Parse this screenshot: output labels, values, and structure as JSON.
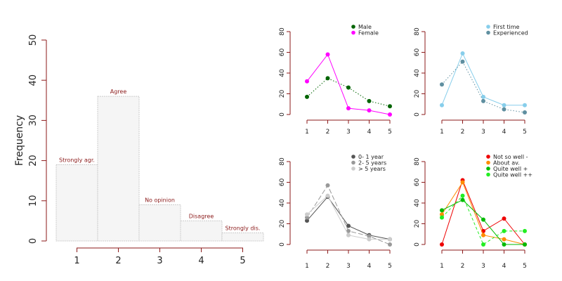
{
  "chart_data": [
    {
      "type": "bar",
      "ylabel": "Frequency",
      "categories": [
        "1",
        "2",
        "3",
        "4",
        "5"
      ],
      "values": [
        19,
        36,
        9,
        5,
        2
      ],
      "bar_labels": [
        "Strongly agr.",
        "Agree",
        "No opinion",
        "Disagree",
        "Strongly dis."
      ],
      "ylim": [
        0,
        50
      ],
      "yticks": [
        0,
        10,
        20,
        30,
        40,
        50
      ],
      "bar_fill": "#f5f5f5",
      "bar_stroke": "#cccccc",
      "label_color": "#8b1a1a"
    },
    {
      "type": "line",
      "x": [
        1,
        2,
        3,
        4,
        5
      ],
      "ylim": [
        0,
        80
      ],
      "yticks": [
        0,
        20,
        40,
        60,
        80
      ],
      "legend_position": "top-right",
      "series": [
        {
          "name": "Male",
          "values": [
            17,
            35,
            26,
            13,
            8
          ],
          "color": "#006400",
          "dash": "dotted"
        },
        {
          "name": "Female",
          "values": [
            32,
            58,
            6,
            4,
            0
          ],
          "color": "#ff00ff",
          "dash": "solid"
        }
      ]
    },
    {
      "type": "line",
      "x": [
        1,
        2,
        3,
        4,
        5
      ],
      "ylim": [
        0,
        80
      ],
      "yticks": [
        0,
        20,
        40,
        60,
        80
      ],
      "legend_position": "top-right",
      "series": [
        {
          "name": "First time",
          "values": [
            9,
            59,
            17,
            9,
            9
          ],
          "color": "#87ceeb",
          "dash": "solid"
        },
        {
          "name": "Experienced",
          "values": [
            29,
            51,
            13,
            5,
            2
          ],
          "color": "#5f8fa0",
          "dash": "dotted"
        }
      ]
    },
    {
      "type": "line",
      "x": [
        1,
        2,
        3,
        4,
        5
      ],
      "ylim": [
        0,
        80
      ],
      "yticks": [
        0,
        20,
        40,
        60,
        80
      ],
      "legend_position": "top-right",
      "series": [
        {
          "name": "0- 1 year",
          "values": [
            23,
            46,
            18,
            9,
            5
          ],
          "color": "#555555",
          "dash": "solid"
        },
        {
          "name": "2- 5 years",
          "values": [
            26,
            57,
            13,
            8,
            0
          ],
          "color": "#999999",
          "dash": "longdash"
        },
        {
          "name": "> 5 years",
          "values": [
            29,
            47,
            9,
            5,
            5
          ],
          "color": "#cccccc",
          "dash": "solid"
        }
      ]
    },
    {
      "type": "line",
      "x": [
        1,
        2,
        3,
        4,
        5
      ],
      "ylim": [
        0,
        80
      ],
      "yticks": [
        0,
        20,
        40,
        60,
        80
      ],
      "legend_position": "top-right",
      "series": [
        {
          "name": "Not so well -",
          "values": [
            0,
            62,
            13,
            25,
            0
          ],
          "color": "#ee0000",
          "dash": "solid"
        },
        {
          "name": "About av.",
          "values": [
            29,
            60,
            9,
            5,
            0
          ],
          "color": "#ff8c00",
          "dash": "solid"
        },
        {
          "name": "Quite well +",
          "values": [
            33,
            43,
            24,
            0,
            0
          ],
          "color": "#00bb00",
          "dash": "solid"
        },
        {
          "name": "Quite well ++",
          "values": [
            26,
            47,
            0,
            13,
            13
          ],
          "color": "#22ee22",
          "dash": "dashed"
        }
      ]
    }
  ]
}
